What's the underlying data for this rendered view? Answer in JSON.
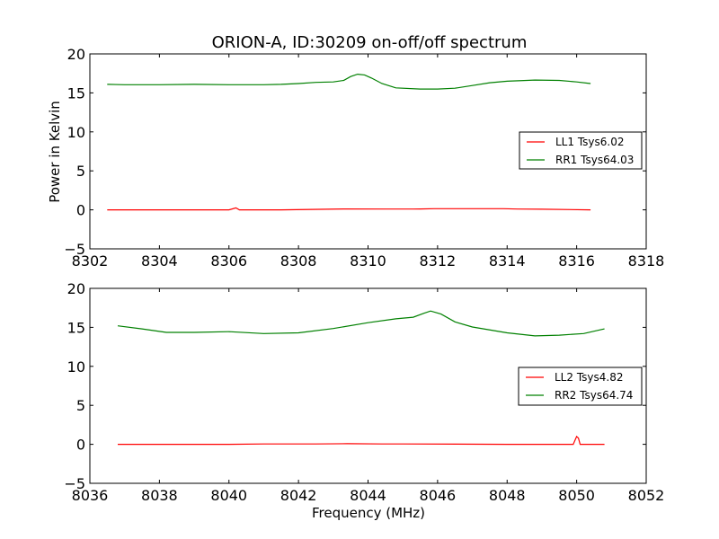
{
  "figure": {
    "title": "ORION-A, ID:30209 on-off/off spectrum",
    "ylabel": "Power in Kelvin",
    "xlabel": "Frequency (MHz)"
  },
  "chart_data": [
    {
      "type": "line",
      "title": "ORION-A, ID:30209 on-off/off spectrum",
      "xlabel": "",
      "ylabel": "Power in Kelvin",
      "xlim": [
        8302,
        8318
      ],
      "ylim": [
        -5,
        20
      ],
      "xticks": [
        "8302",
        "8304",
        "8306",
        "8308",
        "8310",
        "8312",
        "8314",
        "8316",
        "8318"
      ],
      "yticks": [
        "−5",
        "0",
        "5",
        "10",
        "15",
        "20"
      ],
      "legend": "right",
      "series": [
        {
          "name": "LL1 Tsys6.02",
          "color": "#ff0000",
          "x": [
            8302.5,
            8304,
            8306,
            8306.2,
            8306.3,
            8307.5,
            8309.3,
            8310.5,
            8311.1,
            8311.3,
            8311.5,
            8311.9,
            8312.4,
            8312.9,
            8313.4,
            8313.6,
            8313.9,
            8314.3,
            8315,
            8316.4
          ],
          "y": [
            0,
            0,
            0,
            0.25,
            0,
            0,
            0.12,
            0.1,
            0.1,
            0.1,
            0.12,
            0.15,
            0.15,
            0.15,
            0.15,
            0.15,
            0.15,
            0.1,
            0.08,
            0
          ]
        },
        {
          "name": "RR1 Tsys64.03",
          "color": "#008000",
          "x": [
            8302.5,
            8303,
            8304,
            8305,
            8306,
            8307,
            8307.5,
            8308,
            8308.5,
            8309,
            8309.3,
            8309.5,
            8309.7,
            8309.9,
            8310.1,
            8310.4,
            8310.8,
            8311.5,
            8312,
            8312.5,
            8313,
            8313.5,
            8314,
            8314.8,
            8315.5,
            8316,
            8316.4
          ],
          "y": [
            16.1,
            16.05,
            16.05,
            16.1,
            16.05,
            16.05,
            16.1,
            16.2,
            16.35,
            16.4,
            16.6,
            17.1,
            17.4,
            17.3,
            16.9,
            16.2,
            15.65,
            15.5,
            15.5,
            15.6,
            15.95,
            16.3,
            16.5,
            16.65,
            16.6,
            16.4,
            16.2
          ]
        }
      ]
    },
    {
      "type": "line",
      "title": "",
      "xlabel": "Frequency (MHz)",
      "ylabel": "",
      "xlim": [
        8036,
        8052
      ],
      "ylim": [
        -5,
        20
      ],
      "xticks": [
        "8036",
        "8038",
        "8040",
        "8042",
        "8044",
        "8046",
        "8048",
        "8050",
        "8052"
      ],
      "yticks": [
        "−5",
        "0",
        "5",
        "10",
        "15",
        "20"
      ],
      "legend": "right",
      "series": [
        {
          "name": "LL2 Tsys4.82",
          "color": "#ff0000",
          "x": [
            8036.8,
            8040,
            8041,
            8042.5,
            8043.4,
            8044.4,
            8045,
            8048,
            8049.9,
            8050.0,
            8050.05,
            8050.1,
            8050.2,
            8050.8
          ],
          "y": [
            0,
            0,
            0.05,
            0.05,
            0.08,
            0.05,
            0.05,
            0,
            0,
            1.0,
            0.8,
            0,
            0,
            0
          ]
        },
        {
          "name": "RR2 Tsys64.74",
          "color": "#008000",
          "x": [
            8036.8,
            8037.5,
            8038.2,
            8039,
            8040,
            8041,
            8042,
            8043,
            8044,
            8044.8,
            8045.3,
            8045.6,
            8045.8,
            8046.1,
            8046.5,
            8047,
            8048,
            8048.8,
            8049.5,
            8050.2,
            8050.8
          ],
          "y": [
            15.2,
            14.8,
            14.35,
            14.35,
            14.45,
            14.2,
            14.3,
            14.85,
            15.6,
            16.1,
            16.3,
            16.8,
            17.1,
            16.7,
            15.7,
            15.05,
            14.3,
            13.9,
            14.0,
            14.2,
            14.8
          ]
        }
      ]
    }
  ]
}
